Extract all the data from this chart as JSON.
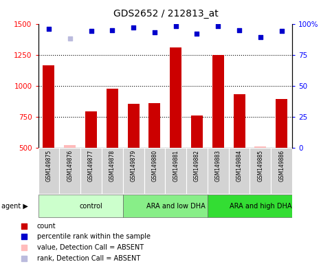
{
  "title": "GDS2652 / 212813_at",
  "samples": [
    "GSM149875",
    "GSM149876",
    "GSM149877",
    "GSM149878",
    "GSM149879",
    "GSM149880",
    "GSM149881",
    "GSM149882",
    "GSM149883",
    "GSM149884",
    "GSM149885",
    "GSM149886"
  ],
  "counts": [
    1165,
    null,
    795,
    975,
    855,
    860,
    1310,
    760,
    1250,
    935,
    null,
    895
  ],
  "absent_counts": [
    null,
    525,
    null,
    null,
    null,
    null,
    null,
    null,
    null,
    null,
    510,
    null
  ],
  "percentile_ranks": [
    96,
    null,
    94,
    95,
    97,
    93,
    98,
    92,
    98,
    95,
    89,
    94
  ],
  "absent_ranks": [
    null,
    88,
    null,
    null,
    null,
    null,
    null,
    null,
    null,
    null,
    null,
    null
  ],
  "ylim": [
    500,
    1500
  ],
  "yticks": [
    500,
    750,
    1000,
    1250,
    1500
  ],
  "right_ylim": [
    0,
    100
  ],
  "right_yticks": [
    0,
    25,
    50,
    75,
    100
  ],
  "bar_color": "#cc0000",
  "absent_bar_color": "#ffbbbb",
  "dot_color": "#0000cc",
  "absent_dot_color": "#bbbbdd",
  "groups": [
    {
      "label": "control",
      "start": 0,
      "end": 4,
      "color": "#ccffcc"
    },
    {
      "label": "ARA and low DHA",
      "start": 4,
      "end": 8,
      "color": "#88ee88"
    },
    {
      "label": "ARA and high DHA",
      "start": 8,
      "end": 12,
      "color": "#33dd33"
    }
  ],
  "legend_items": [
    {
      "label": "count",
      "color": "#cc0000",
      "marker": "s"
    },
    {
      "label": "percentile rank within the sample",
      "color": "#0000cc",
      "marker": "s"
    },
    {
      "label": "value, Detection Call = ABSENT",
      "color": "#ffbbbb",
      "marker": "s"
    },
    {
      "label": "rank, Detection Call = ABSENT",
      "color": "#bbbbdd",
      "marker": "s"
    }
  ],
  "bar_width": 0.55
}
